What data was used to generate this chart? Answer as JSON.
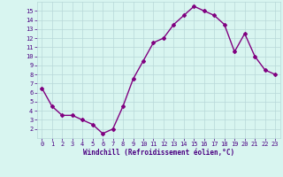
{
  "x": [
    0,
    1,
    2,
    3,
    4,
    5,
    6,
    7,
    8,
    9,
    10,
    11,
    12,
    13,
    14,
    15,
    16,
    17,
    18,
    19,
    20,
    21,
    22,
    23
  ],
  "y": [
    6.5,
    4.5,
    3.5,
    3.5,
    3.0,
    2.5,
    1.5,
    2.0,
    4.5,
    7.5,
    9.5,
    11.5,
    12.0,
    13.5,
    14.5,
    15.5,
    15.0,
    14.5,
    13.5,
    10.5,
    12.5,
    10.0,
    8.5,
    8.0
  ],
  "xlabel": "Windchill (Refroidissement éolien,°C)",
  "xlim": [
    -0.5,
    23.5
  ],
  "ylim": [
    1.0,
    16.0
  ],
  "yticks": [
    2,
    3,
    4,
    5,
    6,
    7,
    8,
    9,
    10,
    11,
    12,
    13,
    14,
    15
  ],
  "xticks": [
    0,
    1,
    2,
    3,
    4,
    5,
    6,
    7,
    8,
    9,
    10,
    11,
    12,
    13,
    14,
    15,
    16,
    17,
    18,
    19,
    20,
    21,
    22,
    23
  ],
  "line_color": "#800080",
  "marker": "D",
  "marker_size": 2.0,
  "bg_color": "#d8f5f0",
  "grid_color": "#b8d8d8",
  "axis_label_color": "#4B0082",
  "tick_label_color": "#4B0082",
  "line_width": 1.0,
  "tick_fontsize": 5.0,
  "xlabel_fontsize": 5.5
}
